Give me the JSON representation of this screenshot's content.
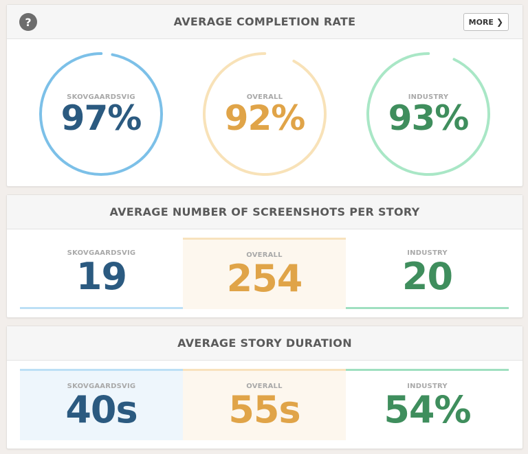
{
  "colors": {
    "skov_text": "#2b5a80",
    "skov_ring": "#7cc0e8",
    "skov_bar": "#bcdff5",
    "skov_fill": "#eef6fc",
    "overall_text": "#e0a448",
    "overall_ring": "#f8e2b8",
    "overall_bar": "#f8e2bd",
    "overall_fill": "#fdf7ee",
    "industry_text": "#3f8e5d",
    "industry_ring": "#a9e7c6",
    "industry_bar": "#9fdfc0",
    "industry_fill": "#ffffff"
  },
  "help_icon": {
    "glyph": "?",
    "icon": "question-circle-icon"
  },
  "completion": {
    "title": "AVERAGE COMPLETION RATE",
    "more_label": "MORE",
    "more_icon": "chevron-right-icon",
    "items": [
      {
        "label": "SKOVGAARDSVIG",
        "value": "97%",
        "percent": 97
      },
      {
        "label": "OVERALL",
        "value": "92%",
        "percent": 92
      },
      {
        "label": "INDUSTRY",
        "value": "93%",
        "percent": 93
      }
    ]
  },
  "screenshots": {
    "title": "AVERAGE NUMBER OF SCREENSHOTS PER STORY",
    "items": [
      {
        "label": "SKOVGAARDSVIG",
        "value": "19"
      },
      {
        "label": "OVERALL",
        "value": "254"
      },
      {
        "label": "INDUSTRY",
        "value": "20"
      }
    ]
  },
  "duration": {
    "title": "AVERAGE STORY DURATION",
    "items": [
      {
        "label": "SKOVGAARDSVIG",
        "value": "40s"
      },
      {
        "label": "OVERALL",
        "value": "55s"
      },
      {
        "label": "INDUSTRY",
        "value": "54%"
      }
    ]
  }
}
